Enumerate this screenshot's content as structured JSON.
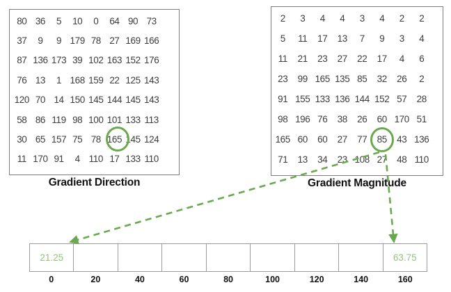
{
  "figure": {
    "direction_matrix": {
      "label": "Gradient Direction",
      "rows": [
        [
          80,
          36,
          5,
          10,
          0,
          64,
          90,
          73
        ],
        [
          37,
          9,
          9,
          179,
          78,
          27,
          169,
          166
        ],
        [
          87,
          136,
          173,
          39,
          102,
          163,
          152,
          176
        ],
        [
          76,
          13,
          1,
          168,
          159,
          22,
          125,
          143
        ],
        [
          120,
          70,
          14,
          150,
          145,
          144,
          145,
          143
        ],
        [
          58,
          86,
          119,
          98,
          100,
          101,
          133,
          113
        ],
        [
          30,
          65,
          157,
          75,
          78,
          165,
          145,
          124
        ],
        [
          11,
          170,
          91,
          4,
          110,
          17,
          133,
          110
        ]
      ],
      "circled": {
        "row": 6,
        "col": 5,
        "value": 165
      }
    },
    "magnitude_matrix": {
      "label": "Gradient Magnitude",
      "rows": [
        [
          2,
          3,
          4,
          4,
          3,
          4,
          2,
          2
        ],
        [
          5,
          11,
          17,
          13,
          7,
          9,
          3,
          4
        ],
        [
          11,
          21,
          23,
          27,
          22,
          17,
          4,
          6
        ],
        [
          23,
          99,
          165,
          135,
          85,
          32,
          26,
          2
        ],
        [
          91,
          155,
          133,
          136,
          144,
          152,
          57,
          28
        ],
        [
          98,
          196,
          76,
          38,
          26,
          60,
          170,
          51
        ],
        [
          165,
          60,
          60,
          27,
          77,
          85,
          43,
          136
        ],
        [
          71,
          13,
          34,
          23,
          108,
          27,
          48,
          110
        ]
      ],
      "circled": {
        "row": 6,
        "col": 5,
        "value": 85
      }
    },
    "histogram": {
      "bins": [
        {
          "label": "0",
          "value": "21.25"
        },
        {
          "label": "20",
          "value": ""
        },
        {
          "label": "40",
          "value": ""
        },
        {
          "label": "60",
          "value": ""
        },
        {
          "label": "80",
          "value": ""
        },
        {
          "label": "100",
          "value": ""
        },
        {
          "label": "120",
          "value": ""
        },
        {
          "label": "140",
          "value": ""
        },
        {
          "label": "160",
          "value": "63.75"
        }
      ]
    },
    "colors": {
      "accent_green": "#6aa84f",
      "value_green": "#93c47d",
      "grid_border": "#9b9b9b",
      "box_border": "#7d7d7d",
      "number_text": "#3c3c3c",
      "label_text": "#111111"
    }
  },
  "chart_data": {
    "type": "table",
    "title": "HOG orientation bin contributions",
    "columns": [
      "0",
      "20",
      "40",
      "60",
      "80",
      "100",
      "120",
      "140",
      "160"
    ],
    "rows": [
      [
        "21.25",
        "",
        "",
        "",
        "",
        "",
        "",
        "",
        "63.75"
      ]
    ]
  }
}
